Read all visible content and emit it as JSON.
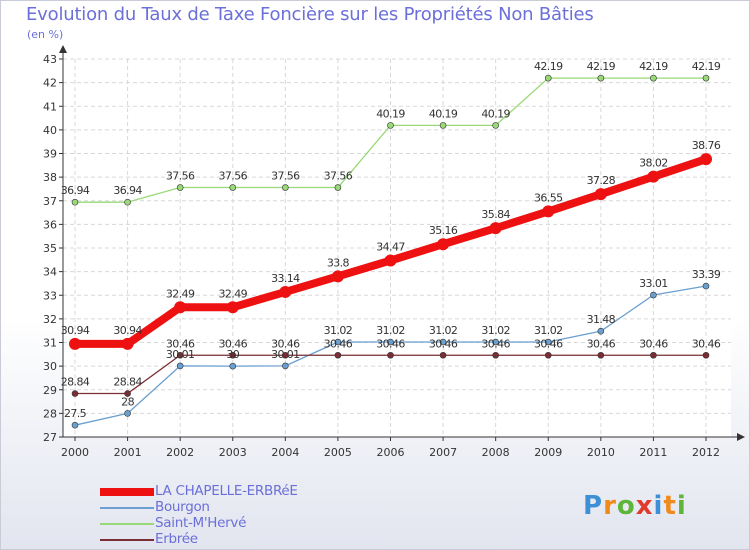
{
  "title": "Evolution du Taux de Taxe Foncière sur les Propriétés Non Bâties",
  "subtitle": "(en %)",
  "logo": {
    "letters": [
      "P",
      "r",
      "o",
      "x",
      "i",
      "t",
      "i"
    ],
    "colors": [
      "#3d8fd6",
      "#f08a1c",
      "#5fb53a",
      "#e23b2e",
      "#3d8fd6",
      "#f08a1c",
      "#5fb53a"
    ]
  },
  "chart_data": {
    "type": "line",
    "title": "Evolution du Taux de Taxe Foncière sur les Propriétés Non Bâties",
    "ylabel": "(en %)",
    "xlabel": "",
    "x": [
      "2000",
      "2001",
      "2002",
      "2003",
      "2004",
      "2005",
      "2006",
      "2007",
      "2008",
      "2009",
      "2010",
      "2011",
      "2012"
    ],
    "ylim": [
      27,
      43
    ],
    "yticks": [
      27,
      28,
      29,
      30,
      31,
      32,
      33,
      34,
      35,
      36,
      37,
      38,
      39,
      40,
      41,
      42,
      43
    ],
    "grid": true,
    "legend_position": "bottom-left",
    "series": [
      {
        "name": "LA CHAPELLE-ERBRéE",
        "color": "#ee1111",
        "emphasis": true,
        "values": [
          30.94,
          30.94,
          32.49,
          32.49,
          33.14,
          33.8,
          34.47,
          35.16,
          35.84,
          36.55,
          37.28,
          38.02,
          38.76
        ],
        "labels": [
          "30.94",
          "30.94",
          "32.49",
          "32.49",
          "33.14",
          "33.8",
          "34.47",
          "35.16",
          "35.84",
          "36.55",
          "37.28",
          "38.02",
          "38.76"
        ]
      },
      {
        "name": "Bourgon",
        "color": "#6a9fcf",
        "emphasis": false,
        "values": [
          27.5,
          28,
          30.01,
          30,
          30.01,
          31.02,
          31.02,
          31.02,
          31.02,
          31.02,
          31.48,
          33.01,
          33.39
        ],
        "labels": [
          "27.5",
          "28",
          "30.01",
          "30",
          "30.01",
          "31.02",
          "31.02",
          "31.02",
          "31.02",
          "31.02",
          "31.48",
          "33.01",
          "33.39"
        ]
      },
      {
        "name": "Saint-M'Hervé",
        "color": "#99d977",
        "emphasis": false,
        "values": [
          36.94,
          36.94,
          37.56,
          37.56,
          37.56,
          37.56,
          40.19,
          40.19,
          40.19,
          42.19,
          42.19,
          42.19,
          42.19
        ],
        "labels": [
          "36.94",
          "36.94",
          "37.56",
          "37.56",
          "37.56",
          "37.56",
          "40.19",
          "40.19",
          "40.19",
          "42.19",
          "42.19",
          "42.19",
          "42.19"
        ]
      },
      {
        "name": "Erbrée",
        "color": "#7a2e33",
        "emphasis": false,
        "values": [
          28.84,
          28.84,
          30.46,
          30.46,
          30.46,
          30.46,
          30.46,
          30.46,
          30.46,
          30.46,
          30.46,
          30.46,
          30.46
        ],
        "labels": [
          "28.84",
          "28.84",
          "30.46",
          "30.46",
          "30.46",
          "30.46",
          "30.46",
          "30.46",
          "30.46",
          "30.46",
          "30.46",
          "30.46",
          "30.46"
        ]
      }
    ]
  }
}
